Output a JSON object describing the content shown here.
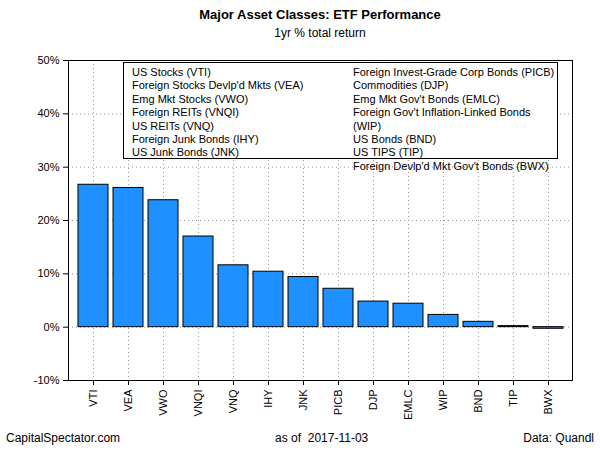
{
  "chart_data": {
    "type": "bar",
    "title": "Major Asset Classes: ETF Performance",
    "subtitle": "1yr % total return",
    "categories": [
      "VTI",
      "VEA",
      "VWO",
      "VNQI",
      "VNQ",
      "IHY",
      "JNK",
      "PICB",
      "DJP",
      "EMLC",
      "WIP",
      "BND",
      "TIP",
      "BWX"
    ],
    "values": [
      26.7,
      26.1,
      23.8,
      17.0,
      11.6,
      10.4,
      9.4,
      7.2,
      4.8,
      4.4,
      2.3,
      1.0,
      0.2,
      -0.3
    ],
    "color": "#1e90ff",
    "ylim": [
      -10,
      50
    ],
    "yticks": [
      {
        "value": -10,
        "label": "-10%"
      },
      {
        "value": 0,
        "label": "0%"
      },
      {
        "value": 10,
        "label": "10%"
      },
      {
        "value": 20,
        "label": "20%"
      },
      {
        "value": 30,
        "label": "30%"
      },
      {
        "value": 40,
        "label": "40%"
      },
      {
        "value": 50,
        "label": "50%"
      }
    ],
    "grid": true,
    "annotations": [
      [
        "US Stocks (VTI)",
        "Foreign Stocks Devlp'd Mkts (VEA)",
        "Emg Mkt Stocks (VWO)",
        "Foreign REITs (VNQI)",
        "US REITs (VNQ)",
        "Foreign Junk Bonds (IHY)",
        "US Junk Bonds (JNK)"
      ],
      [
        "Foreign Invest-Grade Corp Bonds (PICB)",
        "Commodities (DJP)",
        "Emg Mkt Gov't Bonds (EMLC)",
        "Foreign Gov't Inflation-Linked Bonds (WIP)",
        "US Bonds (BND)",
        "US TIPS (TIP)",
        "Foreign Devlp'd Mkt Gov't Bonds (BWX)"
      ]
    ],
    "footer": [
      "CapitalSpectator.com",
      "as of  2017-11-03",
      "Data: Quandl"
    ]
  }
}
